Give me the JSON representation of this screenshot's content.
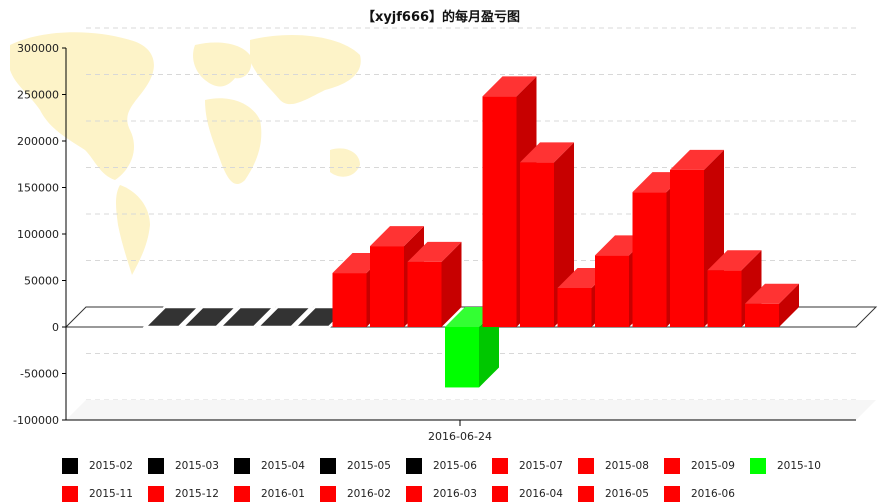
{
  "chart_data": {
    "type": "bar",
    "title": "【xyjf666】的每月盈亏图",
    "xlabel": "2016-06-24",
    "ylabel": "",
    "ylim": [
      -100000,
      300000
    ],
    "yticks": [
      300000,
      250000,
      200000,
      150000,
      100000,
      50000,
      0,
      -50000,
      -100000
    ],
    "grid": true,
    "background_watermark": "world-map",
    "legend_position": "bottom",
    "categories": [
      "2015-02",
      "2015-03",
      "2015-04",
      "2015-05",
      "2015-06",
      "2015-07",
      "2015-08",
      "2015-09",
      "2015-10",
      "2015-11",
      "2015-12",
      "2016-01",
      "2016-02",
      "2016-03",
      "2016-04",
      "2016-05",
      "2016-06"
    ],
    "values": [
      0,
      0,
      0,
      0,
      0,
      58000,
      87000,
      70000,
      -65000,
      248000,
      177000,
      42000,
      77000,
      145000,
      169000,
      61000,
      25000
    ],
    "colors": [
      "#000000",
      "#000000",
      "#000000",
      "#000000",
      "#000000",
      "#ff0000",
      "#ff0000",
      "#ff0000",
      "#00ff00",
      "#ff0000",
      "#ff0000",
      "#ff0000",
      "#ff0000",
      "#ff0000",
      "#ff0000",
      "#ff0000",
      "#ff0000"
    ]
  }
}
